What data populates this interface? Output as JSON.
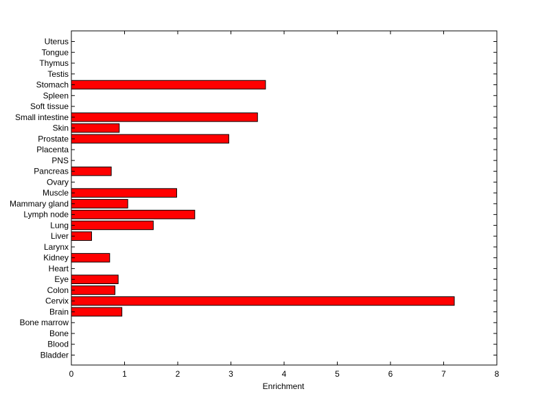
{
  "chart_data": {
    "type": "bar",
    "orientation": "horizontal",
    "categories": [
      "Uterus",
      "Tongue",
      "Thymus",
      "Testis",
      "Stomach",
      "Spleen",
      "Soft tissue",
      "Small intestine",
      "Skin",
      "Prostate",
      "Placenta",
      "PNS",
      "Pancreas",
      "Ovary",
      "Muscle",
      "Mammary gland",
      "Lymph node",
      "Lung",
      "Liver",
      "Larynx",
      "Kidney",
      "Heart",
      "Eye",
      "Colon",
      "Cervix",
      "Brain",
      "Bone marrow",
      "Bone",
      "Blood",
      "Bladder"
    ],
    "values": [
      0,
      0,
      0,
      0,
      3.65,
      0,
      0,
      3.5,
      0.9,
      2.96,
      0,
      0,
      0.75,
      0,
      1.98,
      1.06,
      2.32,
      1.54,
      0.38,
      0,
      0.72,
      0,
      0.88,
      0.82,
      7.2,
      0.95,
      0,
      0,
      0,
      0
    ],
    "xlabel": "Enrichment",
    "ylabel": "",
    "xlim": [
      0,
      8
    ],
    "xticks": [
      "0",
      "1",
      "2",
      "3",
      "4",
      "5",
      "6",
      "7",
      "8"
    ],
    "grid": false,
    "colors": {
      "bar_fill": "#ff0000",
      "bar_edge": "#000000",
      "axis": "#000000"
    }
  }
}
